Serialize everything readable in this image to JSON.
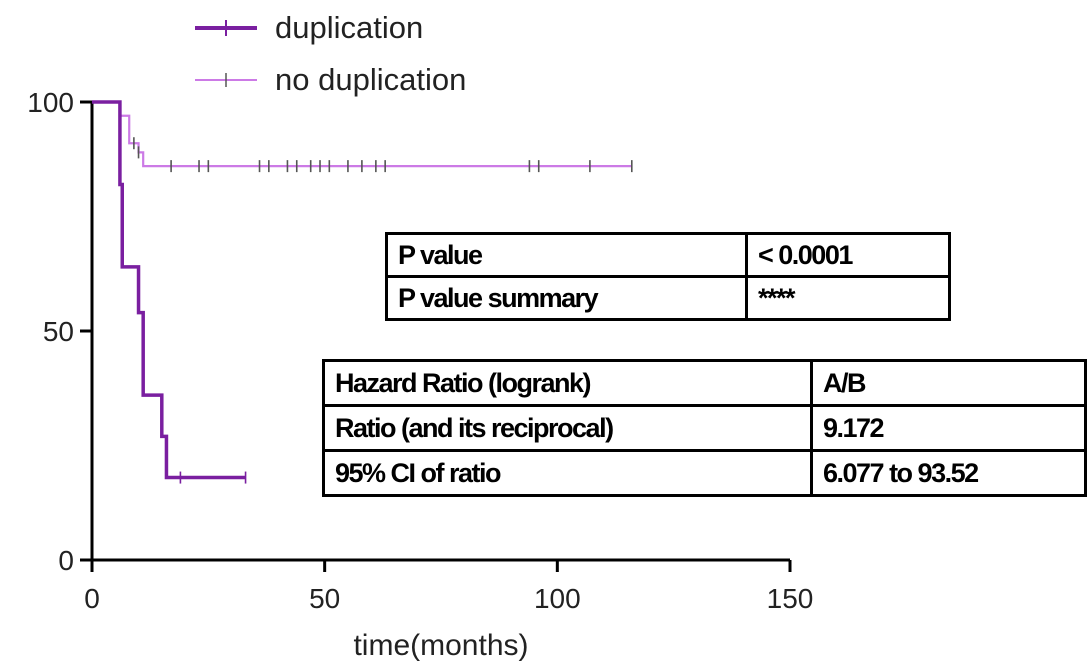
{
  "chart_data": {
    "type": "line",
    "subtype": "kaplan-meier-step",
    "title": "",
    "xlabel": "time(months)",
    "ylabel": "",
    "xlim": [
      0,
      150
    ],
    "ylim": [
      0,
      100
    ],
    "x_ticks": [
      0,
      50,
      100,
      150
    ],
    "y_ticks": [
      0,
      50,
      100
    ],
    "x_tick_labels": [
      "0",
      "50",
      "100",
      "150"
    ],
    "y_tick_labels": [
      "0",
      "50",
      "100"
    ],
    "grid": false,
    "legend_position": "top-left",
    "series": [
      {
        "name": "duplication",
        "color": "#7a1fa0",
        "line_width": "thick",
        "steps": [
          [
            0,
            100
          ],
          [
            6,
            100
          ],
          [
            6,
            82
          ],
          [
            6.5,
            82
          ],
          [
            6.5,
            64
          ],
          [
            10,
            64
          ],
          [
            10,
            54
          ],
          [
            11,
            54
          ],
          [
            11,
            36
          ],
          [
            15,
            36
          ],
          [
            15,
            27
          ],
          [
            16,
            27
          ],
          [
            16,
            18
          ],
          [
            33,
            18
          ]
        ],
        "censored": [
          [
            19,
            18
          ],
          [
            33,
            18
          ]
        ]
      },
      {
        "name": "no duplication",
        "color": "#cc7ae6",
        "line_width": "thin",
        "steps": [
          [
            0,
            100
          ],
          [
            6,
            100
          ],
          [
            6,
            97
          ],
          [
            8,
            97
          ],
          [
            8,
            91
          ],
          [
            10,
            91
          ],
          [
            10,
            89
          ],
          [
            11,
            89
          ],
          [
            11,
            86
          ],
          [
            116,
            86
          ]
        ],
        "censored": [
          [
            9,
            91
          ],
          [
            10,
            89
          ],
          [
            17,
            86
          ],
          [
            23,
            86
          ],
          [
            25,
            86
          ],
          [
            36,
            86
          ],
          [
            38,
            86
          ],
          [
            42,
            86
          ],
          [
            44,
            86
          ],
          [
            47,
            86
          ],
          [
            49,
            86
          ],
          [
            51,
            86
          ],
          [
            55,
            86
          ],
          [
            58,
            86
          ],
          [
            61,
            86
          ],
          [
            63,
            86
          ],
          [
            94,
            86
          ],
          [
            96,
            86
          ],
          [
            107,
            86
          ],
          [
            116,
            86
          ]
        ]
      }
    ]
  },
  "legend": {
    "items": [
      {
        "label": "duplication",
        "color": "#7a1fa0"
      },
      {
        "label": "no duplication",
        "color": "#cc7ae6"
      }
    ]
  },
  "pvalue_table": {
    "rows": [
      {
        "label": "P value",
        "value": "< 0.0001"
      },
      {
        "label": "P value summary",
        "value": "****"
      }
    ]
  },
  "hazard_table": {
    "rows": [
      {
        "label": "Hazard Ratio (logrank)",
        "value": "A/B"
      },
      {
        "label": "Ratio (and its reciprocal)",
        "value": "9.172"
      },
      {
        "label": "95% CI of ratio",
        "value": "6.077 to 93.52"
      }
    ]
  }
}
